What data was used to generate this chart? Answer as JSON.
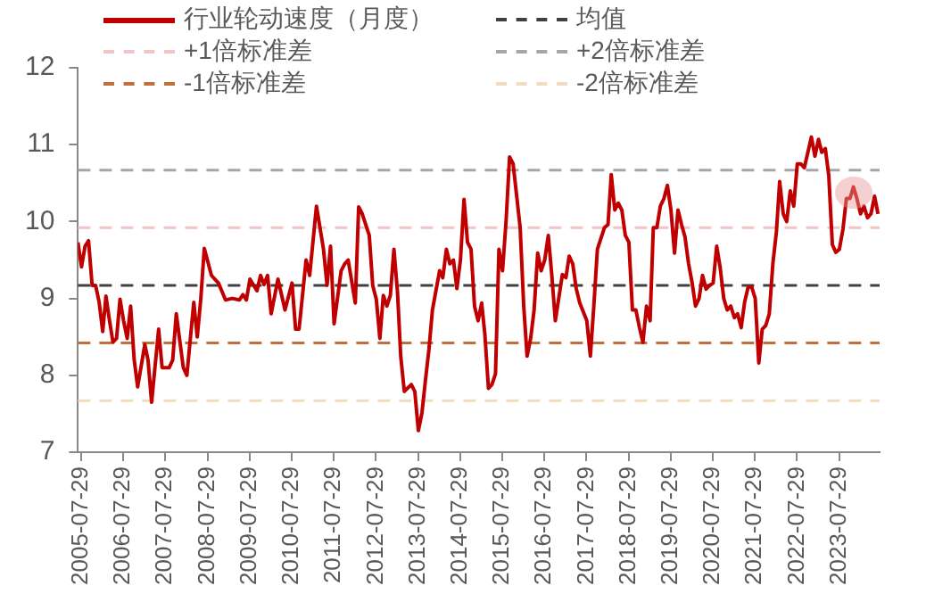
{
  "chart_data": {
    "type": "line",
    "legend": "top",
    "marker": "none",
    "line_style": "solid",
    "grid": false,
    "xlim": [
      "2005-07-01",
      "2024-07-15"
    ],
    "xticks": [
      "2005-07-29",
      "2006-07-29",
      "2007-07-29",
      "2008-07-29",
      "2009-07-29",
      "2010-07-29",
      "2011-07-29",
      "2012-07-29",
      "2013-07-29",
      "2014-07-29",
      "2015-07-29",
      "2016-07-29",
      "2017-07-29",
      "2018-07-29",
      "2019-07-29",
      "2020-07-29",
      "2021-07-29",
      "2022-07-29",
      "2023-07-29"
    ],
    "ylim": [
      7,
      12
    ],
    "yticks": [
      7,
      8,
      9,
      10,
      11,
      12
    ],
    "ref_lines": [
      {
        "axis": "y",
        "value": 9.17,
        "label": "均值",
        "color": "#404040",
        "line_style": "dashed"
      },
      {
        "axis": "y",
        "value": 9.92,
        "label": "+1倍标准差",
        "color": "#f2c4c4",
        "line_style": "dashed"
      },
      {
        "axis": "y",
        "value": 10.67,
        "label": "+2倍标准差",
        "color": "#a6a6a6",
        "line_style": "dashed"
      },
      {
        "axis": "y",
        "value": 8.42,
        "label": "-1倍标准差",
        "color": "#c0703a",
        "line_style": "dashed"
      },
      {
        "axis": "y",
        "value": 7.67,
        "label": "-2倍标准差",
        "color": "#f0dcc0",
        "line_style": "dashed"
      }
    ],
    "series": [
      {
        "name": "行业轮动速度（月度）",
        "color": "#c00000",
        "x": [
          "2005-07",
          "2005-08",
          "2005-09",
          "2005-10",
          "2005-11",
          "2005-12",
          "2006-01",
          "2006-02",
          "2006-03",
          "2006-04",
          "2006-05",
          "2006-06",
          "2006-07",
          "2006-08",
          "2006-09",
          "2006-10",
          "2006-11",
          "2006-12",
          "2007-02",
          "2007-03",
          "2007-04",
          "2007-06",
          "2007-07",
          "2007-09",
          "2007-10",
          "2007-11",
          "2008-01",
          "2008-02",
          "2008-04",
          "2008-05",
          "2008-06",
          "2008-07",
          "2008-09",
          "2008-10",
          "2008-11",
          "2009-01",
          "2009-03",
          "2009-05",
          "2009-06",
          "2009-07",
          "2009-08",
          "2009-10",
          "2009-11",
          "2009-12",
          "2010-01",
          "2010-02",
          "2010-04",
          "2010-06",
          "2010-08",
          "2010-09",
          "2010-10",
          "2010-12",
          "2011-01",
          "2011-03",
          "2011-05",
          "2011-06",
          "2011-07",
          "2011-08",
          "2011-10",
          "2011-11",
          "2011-12",
          "2012-02",
          "2012-03",
          "2012-04",
          "2012-06",
          "2012-07",
          "2012-08",
          "2012-09",
          "2012-10",
          "2012-11",
          "2012-12",
          "2013-01",
          "2013-02",
          "2013-03",
          "2013-04",
          "2013-06",
          "2013-07",
          "2013-08",
          "2013-09",
          "2013-10",
          "2013-11",
          "2013-12",
          "2014-02",
          "2014-03",
          "2014-04",
          "2014-05",
          "2014-06",
          "2014-07",
          "2014-08",
          "2014-09",
          "2014-10",
          "2014-11",
          "2014-12",
          "2015-01",
          "2015-02",
          "2015-03",
          "2015-04",
          "2015-05",
          "2015-06",
          "2015-07",
          "2015-08",
          "2015-09",
          "2015-10",
          "2015-11",
          "2016-01",
          "2016-02",
          "2016-03",
          "2016-04",
          "2016-05",
          "2016-06",
          "2016-07",
          "2016-08",
          "2016-09",
          "2016-10",
          "2016-11",
          "2017-01",
          "2017-02",
          "2017-03",
          "2017-04",
          "2017-05",
          "2017-06",
          "2017-08",
          "2017-09",
          "2017-10",
          "2017-11",
          "2018-01",
          "2018-02",
          "2018-03",
          "2018-04",
          "2018-05",
          "2018-06",
          "2018-07",
          "2018-08",
          "2018-09",
          "2018-10",
          "2018-11",
          "2018-12",
          "2019-01",
          "2019-02",
          "2019-03",
          "2019-04",
          "2019-05",
          "2019-06",
          "2019-07",
          "2019-08",
          "2019-09",
          "2019-10",
          "2019-11",
          "2019-12",
          "2020-01",
          "2020-02",
          "2020-03",
          "2020-04",
          "2020-05",
          "2020-06",
          "2020-07",
          "2020-08",
          "2020-09",
          "2020-10",
          "2020-11",
          "2020-12",
          "2021-01",
          "2021-02",
          "2021-03",
          "2021-04",
          "2021-05",
          "2021-06",
          "2021-07",
          "2021-08",
          "2021-09",
          "2021-10",
          "2021-11",
          "2021-12",
          "2022-01",
          "2022-02",
          "2022-03",
          "2022-04",
          "2022-05",
          "2022-06",
          "2022-07",
          "2022-08",
          "2022-09",
          "2022-10",
          "2022-11",
          "2022-12",
          "2023-01",
          "2023-02",
          "2023-03",
          "2023-04",
          "2023-05",
          "2023-06",
          "2023-07",
          "2023-08",
          "2023-09",
          "2023-10",
          "2023-11",
          "2023-12",
          "2024-01",
          "2024-02",
          "2024-03",
          "2024-04",
          "2024-05",
          "2024-06",
          "2024-07"
        ],
        "values": [
          9.73,
          9.41,
          9.68,
          9.75,
          9.17,
          9.17,
          8.95,
          8.57,
          9.03,
          8.71,
          8.43,
          8.48,
          8.99,
          8.71,
          8.48,
          8.9,
          8.2,
          7.85,
          8.4,
          8.2,
          7.65,
          8.6,
          8.1,
          8.1,
          8.2,
          8.8,
          8.1,
          8.0,
          8.95,
          8.5,
          9.0,
          9.65,
          9.3,
          9.25,
          9.2,
          8.98,
          9.0,
          8.98,
          9.05,
          8.98,
          9.25,
          9.1,
          9.3,
          9.18,
          9.3,
          8.8,
          9.25,
          8.85,
          9.2,
          8.6,
          8.6,
          9.5,
          9.3,
          10.2,
          9.64,
          9.17,
          9.68,
          8.67,
          9.36,
          9.45,
          9.5,
          8.94,
          10.19,
          10.1,
          9.82,
          9.17,
          8.99,
          8.48,
          9.04,
          8.9,
          9.04,
          9.64,
          9.08,
          8.25,
          7.79,
          7.88,
          7.79,
          7.28,
          7.51,
          7.93,
          8.34,
          8.85,
          9.36,
          9.27,
          9.64,
          9.45,
          9.5,
          9.13,
          9.5,
          10.29,
          9.73,
          9.64,
          8.9,
          8.71,
          8.94,
          8.53,
          7.83,
          7.88,
          8.02,
          9.64,
          9.36,
          10.01,
          10.84,
          10.75,
          9.92,
          8.9,
          8.25,
          8.48,
          8.85,
          9.59,
          9.36,
          9.5,
          9.82,
          9.31,
          8.71,
          9.31,
          9.27,
          9.55,
          9.45,
          9.13,
          8.94,
          8.71,
          8.25,
          8.9,
          9.64,
          9.92,
          9.96,
          10.61,
          10.15,
          10.24,
          10.15,
          9.82,
          9.73,
          8.85,
          8.85,
          8.62,
          8.43,
          8.9,
          8.71,
          9.92,
          9.92,
          10.2,
          10.3,
          10.47,
          10.15,
          9.59,
          10.15,
          9.96,
          9.8,
          9.45,
          9.2,
          8.9,
          9.0,
          9.3,
          9.12,
          9.17,
          9.2,
          9.68,
          9.4,
          9.0,
          8.85,
          8.9,
          8.75,
          8.8,
          8.62,
          8.95,
          9.15,
          9.15,
          9.0,
          8.16,
          8.6,
          8.65,
          8.8,
          9.45,
          9.87,
          10.52,
          10.1,
          10.0,
          10.4,
          10.2,
          10.75,
          10.75,
          10.7,
          10.9,
          11.1,
          10.85,
          11.07,
          10.9,
          10.95,
          10.6,
          9.7,
          9.6,
          9.64,
          9.9,
          10.3,
          10.3,
          10.45,
          10.29,
          10.1,
          10.2,
          10.05,
          10.1,
          10.33,
          10.1
        ]
      }
    ]
  }
}
